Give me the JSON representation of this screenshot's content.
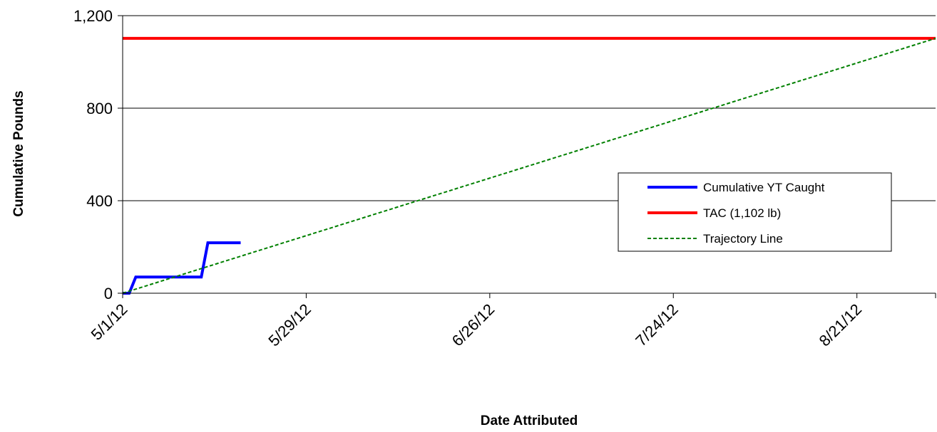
{
  "chart_data": {
    "type": "line",
    "title": "",
    "xlabel": "Date Attributed",
    "ylabel": "Cumulative Pounds",
    "x_axis": {
      "type": "date",
      "range": [
        "2012-05-01",
        "2012-09-02"
      ],
      "ticks": [
        {
          "date": "2012-05-01",
          "label": "5/1/12"
        },
        {
          "date": "2012-05-29",
          "label": "5/29/12"
        },
        {
          "date": "2012-06-26",
          "label": "6/26/12"
        },
        {
          "date": "2012-07-24",
          "label": "7/24/12"
        },
        {
          "date": "2012-08-21",
          "label": "8/21/12"
        }
      ]
    },
    "y_axis": {
      "range": [
        0,
        1200
      ],
      "ticks": [
        {
          "value": 0,
          "label": "0"
        },
        {
          "value": 400,
          "label": "400"
        },
        {
          "value": 800,
          "label": "800"
        },
        {
          "value": 1200,
          "label": "1,200"
        }
      ]
    },
    "grid": "horizontal",
    "legend_position": "right",
    "series": [
      {
        "name": "Cumulative YT Caught",
        "color": "#0000ff",
        "style": "solid",
        "points": [
          {
            "x": "2012-05-01",
            "y": 0
          },
          {
            "x": "2012-05-02",
            "y": 0
          },
          {
            "x": "2012-05-03",
            "y": 70
          },
          {
            "x": "2012-05-13",
            "y": 70
          },
          {
            "x": "2012-05-14",
            "y": 218
          },
          {
            "x": "2012-05-19",
            "y": 218
          }
        ]
      },
      {
        "name": "TAC (1,102 lb)",
        "color": "#ff0000",
        "style": "solid",
        "points": [
          {
            "x": "2012-05-01",
            "y": 1102
          },
          {
            "x": "2012-09-02",
            "y": 1102
          }
        ]
      },
      {
        "name": "Trajectory Line",
        "color": "#008000",
        "style": "dashed",
        "points": [
          {
            "x": "2012-05-01",
            "y": 0
          },
          {
            "x": "2012-09-02",
            "y": 1102
          }
        ]
      }
    ]
  }
}
